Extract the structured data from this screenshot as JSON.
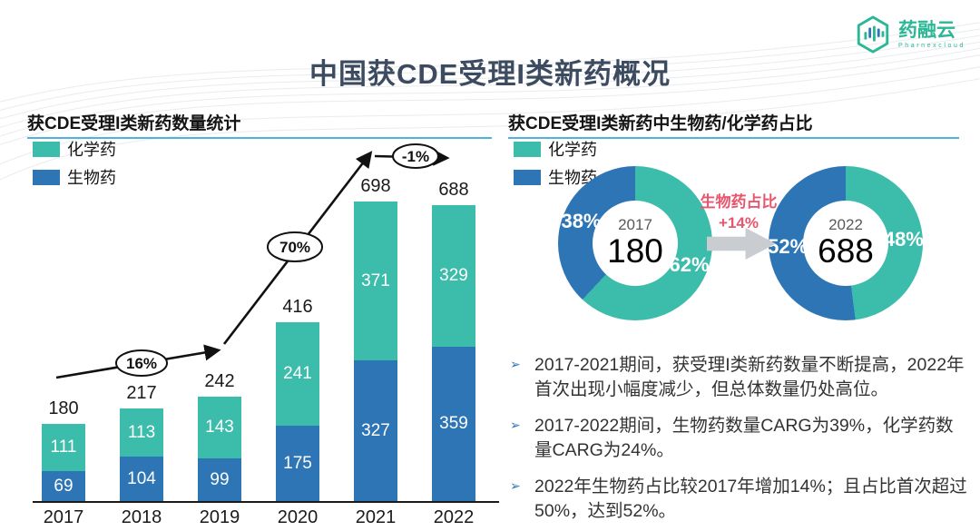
{
  "title": "中国获CDE受理I类新药概况",
  "logo": {
    "name": "药融云",
    "subtitle": "Pharnexcloud"
  },
  "colors": {
    "chemical_teal": "#3cbcab",
    "biological_blue": "#2e75b6",
    "header_underline": "#4fb3dd",
    "title_color": "#3c4b5f",
    "highlight_pink": "#e8566e",
    "arrow_gray": "#c9ccd0"
  },
  "left_section": {
    "header": "获CDE受理I类新药数量统计",
    "legend": [
      {
        "label": "化学药",
        "color": "#3cbcab"
      },
      {
        "label": "生物药",
        "color": "#2e75b6"
      }
    ]
  },
  "right_section": {
    "header": "获CDE受理I类新药中生物药/化学药占比",
    "legend": [
      {
        "label": "化学药",
        "color": "#3cbcab"
      },
      {
        "label": "生物药",
        "color": "#2e75b6"
      }
    ]
  },
  "chart_data": [
    {
      "type": "bar",
      "stacked": true,
      "title": "获CDE受理I类新药数量统计",
      "categories": [
        "2017",
        "2018",
        "2019",
        "2020",
        "2021",
        "2022"
      ],
      "series": [
        {
          "name": "生物药",
          "color": "#2e75b6",
          "values": [
            69,
            104,
            99,
            175,
            327,
            359
          ]
        },
        {
          "name": "化学药",
          "color": "#3cbcab",
          "values": [
            111,
            113,
            143,
            241,
            371,
            329
          ]
        }
      ],
      "totals": [
        180,
        217,
        242,
        416,
        698,
        688
      ],
      "ylim": [
        0,
        698
      ],
      "grid": false,
      "legend_position": "top-left",
      "annotations": [
        {
          "label": "16%"
        },
        {
          "label": "70%"
        },
        {
          "label": "-1%"
        }
      ]
    },
    {
      "type": "pie",
      "title": "获CDE受理I类新药中生物药/化学药占比",
      "donuts": [
        {
          "year": "2017",
          "total": "180",
          "slices": [
            {
              "name": "化学药",
              "pct": 62,
              "color": "#3cbcab"
            },
            {
              "name": "生物药",
              "pct": 38,
              "color": "#2e75b6"
            }
          ]
        },
        {
          "year": "2022",
          "total": "688",
          "slices": [
            {
              "name": "化学药",
              "pct": 48,
              "color": "#3cbcab"
            },
            {
              "name": "生物药",
              "pct": 52,
              "color": "#2e75b6"
            }
          ]
        }
      ],
      "change_label": "生物药占比",
      "change_value": "+14%"
    }
  ],
  "bullets": [
    {
      "marker": "➢",
      "text": "2017-2021期间，获受理I类新药数量不断提高，2022年首次出现小幅度减少，但总体数量仍处高位。"
    },
    {
      "marker": "➢",
      "text": "2017-2022期间，生物药数量CARG为39%，化学药数量CARG为24%。"
    },
    {
      "marker": "➢",
      "text": "2022年生物药占比较2017年增加14%；且占比首次超过50%，达到52%。"
    }
  ]
}
